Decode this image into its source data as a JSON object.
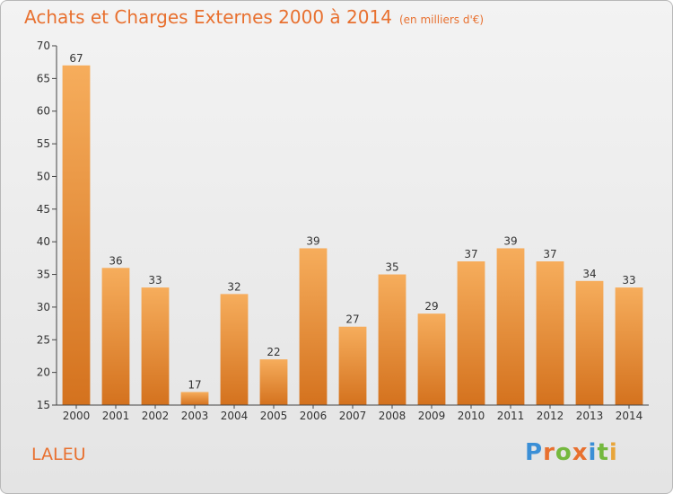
{
  "chart_data": {
    "type": "bar",
    "title": "Achats et Charges Externes 2000 à 2014",
    "subtitle": "(en milliers d'€)",
    "categories": [
      "2000",
      "2001",
      "2002",
      "2003",
      "2004",
      "2005",
      "2006",
      "2007",
      "2008",
      "2009",
      "2010",
      "2011",
      "2012",
      "2013",
      "2014"
    ],
    "values": [
      67,
      36,
      33,
      17,
      32,
      22,
      39,
      27,
      35,
      29,
      37,
      39,
      37,
      34,
      33
    ],
    "ylim": [
      15,
      70
    ],
    "yticks": [
      15,
      20,
      25,
      30,
      35,
      40,
      45,
      50,
      55,
      60,
      65,
      70
    ],
    "grid": false,
    "bar_color": "#f0953f",
    "bar_color_light": "#f6ad5c",
    "bar_color_dark": "#d4721e"
  },
  "place": "LALEU",
  "logo": {
    "letters": [
      "P",
      "r",
      "o",
      "x",
      "i",
      "t",
      "i"
    ],
    "colors": [
      "#3b8fd6",
      "#e8702f",
      "#74b83e",
      "#e8702f",
      "#3b8fd6",
      "#74b83e",
      "#e8a53a"
    ]
  }
}
